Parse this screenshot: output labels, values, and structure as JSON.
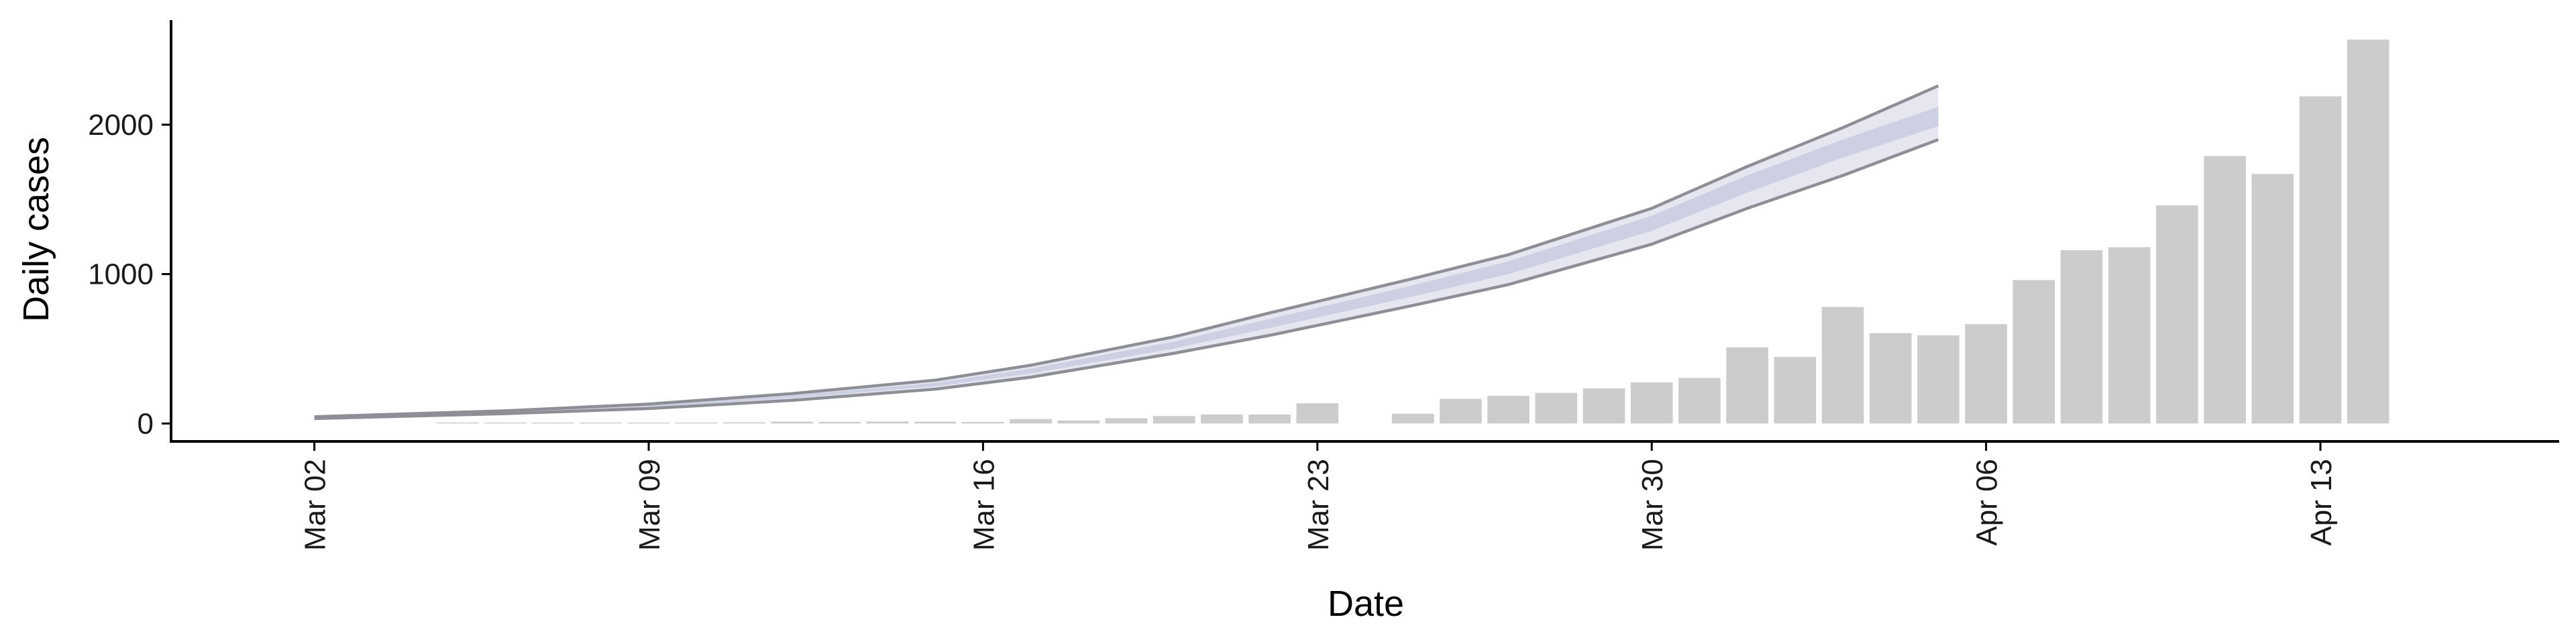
{
  "chart_data": {
    "type": "bar",
    "title": "",
    "xlabel": "Date",
    "ylabel": "Daily cases",
    "x_axis": {
      "type": "date",
      "range": [
        "2020-02-28",
        "2020-04-18"
      ],
      "ticks": [
        {
          "date": "2020-03-02",
          "label": "Mar 02"
        },
        {
          "date": "2020-03-09",
          "label": "Mar 09"
        },
        {
          "date": "2020-03-16",
          "label": "Mar 16"
        },
        {
          "date": "2020-03-23",
          "label": "Mar 23"
        },
        {
          "date": "2020-03-30",
          "label": "Mar 30"
        },
        {
          "date": "2020-04-06",
          "label": "Apr 06"
        },
        {
          "date": "2020-04-13",
          "label": "Apr 13"
        }
      ]
    },
    "y_axis": {
      "range": [
        -120,
        2700
      ],
      "ticks": [
        0,
        1000,
        2000
      ]
    },
    "grid": false,
    "legend": "none",
    "colors": {
      "bars": "#cccccc",
      "band_outer": "#dcdee9",
      "band_inner": "#c9cde0",
      "bound_lines": "#8e8f96"
    },
    "series": [
      {
        "kind": "bar",
        "data": [
          {
            "date": "2020-03-05",
            "value": 2
          },
          {
            "date": "2020-03-06",
            "value": 2
          },
          {
            "date": "2020-03-07",
            "value": 4
          },
          {
            "date": "2020-03-08",
            "value": 3
          },
          {
            "date": "2020-03-09",
            "value": 5
          },
          {
            "date": "2020-03-10",
            "value": 6
          },
          {
            "date": "2020-03-11",
            "value": 8
          },
          {
            "date": "2020-03-12",
            "value": 12
          },
          {
            "date": "2020-03-13",
            "value": 11
          },
          {
            "date": "2020-03-14",
            "value": 13
          },
          {
            "date": "2020-03-15",
            "value": 12
          },
          {
            "date": "2020-03-16",
            "value": 10
          },
          {
            "date": "2020-03-17",
            "value": 30
          },
          {
            "date": "2020-03-18",
            "value": 20
          },
          {
            "date": "2020-03-19",
            "value": 35
          },
          {
            "date": "2020-03-20",
            "value": 50
          },
          {
            "date": "2020-03-21",
            "value": 60
          },
          {
            "date": "2020-03-22",
            "value": 60
          },
          {
            "date": "2020-03-23",
            "value": 135
          },
          {
            "date": "2020-03-25",
            "value": 65
          },
          {
            "date": "2020-03-26",
            "value": 165
          },
          {
            "date": "2020-03-27",
            "value": 185
          },
          {
            "date": "2020-03-28",
            "value": 205
          },
          {
            "date": "2020-03-29",
            "value": 235
          },
          {
            "date": "2020-03-30",
            "value": 275
          },
          {
            "date": "2020-03-31",
            "value": 305
          },
          {
            "date": "2020-04-01",
            "value": 510
          },
          {
            "date": "2020-04-02",
            "value": 445
          },
          {
            "date": "2020-04-03",
            "value": 780
          },
          {
            "date": "2020-04-04",
            "value": 605
          },
          {
            "date": "2020-04-05",
            "value": 590
          },
          {
            "date": "2020-04-06",
            "value": 665
          },
          {
            "date": "2020-04-07",
            "value": 960
          },
          {
            "date": "2020-04-08",
            "value": 1160
          },
          {
            "date": "2020-04-09",
            "value": 1180
          },
          {
            "date": "2020-04-10",
            "value": 1460
          },
          {
            "date": "2020-04-11",
            "value": 1790
          },
          {
            "date": "2020-04-12",
            "value": 1670
          },
          {
            "date": "2020-04-13",
            "value": 2190
          },
          {
            "date": "2020-04-14",
            "value": 2570
          }
        ]
      },
      {
        "kind": "projection_band",
        "x": [
          "2020-03-02",
          "2020-03-06",
          "2020-03-09",
          "2020-03-12",
          "2020-03-15",
          "2020-03-17",
          "2020-03-20",
          "2020-03-22",
          "2020-03-25",
          "2020-03-27",
          "2020-03-30",
          "2020-04-01",
          "2020-04-03",
          "2020-04-05"
        ],
        "upper": [
          45,
          85,
          130,
          200,
          290,
          390,
          580,
          740,
          970,
          1130,
          1440,
          1720,
          1980,
          2260
        ],
        "upper_inner": [
          42,
          80,
          122,
          188,
          272,
          368,
          548,
          700,
          925,
          1085,
          1390,
          1660,
          1900,
          2120
        ],
        "lower_inner": [
          37,
          72,
          110,
          170,
          248,
          335,
          502,
          640,
          850,
          1000,
          1290,
          1545,
          1780,
          1990
        ],
        "lower": [
          33,
          66,
          100,
          155,
          230,
          310,
          470,
          590,
          790,
          930,
          1200,
          1440,
          1660,
          1900
        ]
      }
    ]
  }
}
